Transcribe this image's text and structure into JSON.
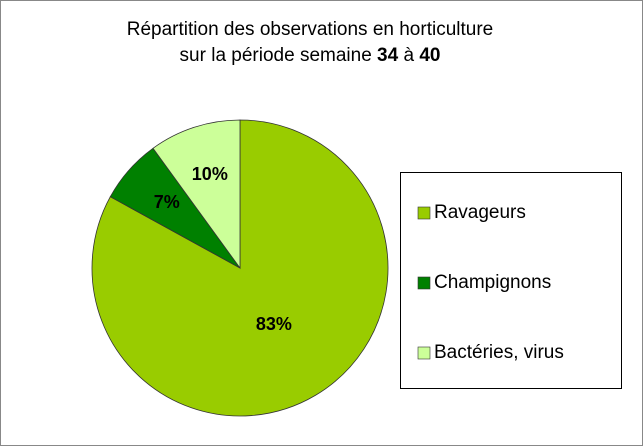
{
  "chart_data": {
    "type": "pie",
    "title": [
      [
        {
          "text": "Répartition des observations en horticulture",
          "bold": false
        }
      ],
      [
        {
          "text": "sur la période semaine ",
          "bold": false
        },
        {
          "text": "34",
          "bold": true
        },
        {
          "text": " à ",
          "bold": false
        },
        {
          "text": "40",
          "bold": true
        }
      ]
    ],
    "categories": [
      "Ravageurs",
      "Champignons",
      "Bactéries, virus"
    ],
    "values": [
      83,
      7,
      10
    ],
    "value_labels": [
      "83%",
      "7%",
      "10%"
    ],
    "colors": [
      "#99cc00",
      "#008000",
      "#ccff99"
    ],
    "legend": "right"
  }
}
